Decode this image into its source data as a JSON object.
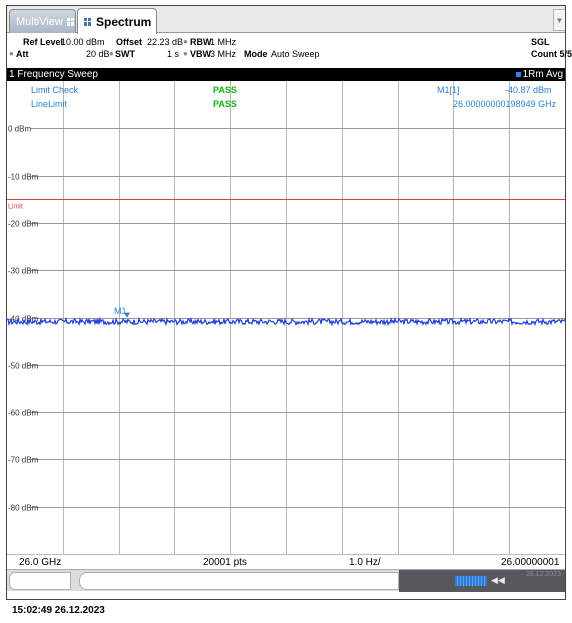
{
  "tabs": [
    {
      "label": "MultiView"
    },
    {
      "label": "Spectrum"
    }
  ],
  "settings": {
    "ref_level_label": "Ref Level",
    "ref_level_value": "10.00 dBm",
    "offset_label": "Offset",
    "offset_value": "22.23 dB",
    "rbw_label": "RBW",
    "rbw_value": "1 MHz",
    "att_label": "Att",
    "att_value": "20 dB",
    "swt_label": "SWT",
    "swt_value": "1 s",
    "vbw_label": "VBW",
    "vbw_value": "3 MHz",
    "mode_label": "Mode",
    "mode_value": "Auto Sweep",
    "sgl": "SGL",
    "count": "Count 5/5"
  },
  "window_title": "1 Frequency Sweep",
  "trace_label": "1Rm Avg",
  "limit_check": {
    "label": "Limit Check",
    "result": "PASS",
    "line_label": "LineLimit",
    "line_result": "PASS"
  },
  "marker": {
    "name": "M1[1]",
    "level": "-40.87 dBm",
    "freq": "26.00000000198949 GHz",
    "plot_label": "M1"
  },
  "limit_label": "Limit",
  "bottom": {
    "start": "26.0 GHz",
    "points": "20001 pts",
    "span": "1.0 Hz/",
    "stop": "26.00000001 GHz"
  },
  "status_date_faint": "26.12.2023",
  "timestamp": "15:02:49  26.12.2023",
  "colors": {
    "trace": "#1a3de0",
    "limit_line": "#d94040",
    "pass": "#0fb80f",
    "accent": "#2a82d4"
  },
  "chart_data": {
    "type": "line",
    "yticks": [
      "0 dBm",
      "-10 dBm",
      "-20 dBm",
      "-30 dBm",
      "-40 dBm",
      "-50 dBm",
      "-60 dBm",
      "-70 dBm",
      "-80 dBm"
    ],
    "ylim": [
      -90,
      10
    ],
    "limit_level": -15,
    "series": [
      {
        "mean": -40.87,
        "noise": 0.6
      }
    ],
    "grid": true
  }
}
